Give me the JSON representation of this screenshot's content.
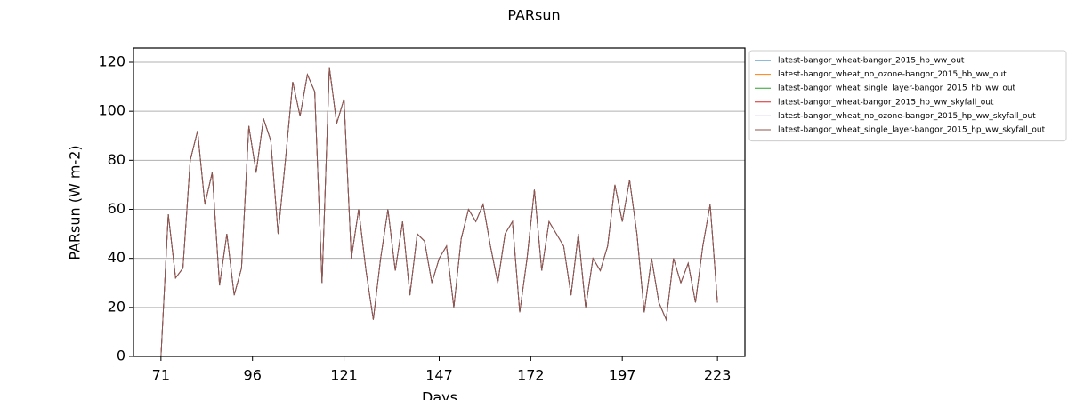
{
  "chart_data": {
    "type": "line",
    "title": "PARsun",
    "xlabel": "Days",
    "ylabel": "PARsun (W m-2)",
    "xlim": [
      63.5,
      230.5
    ],
    "xticks": [
      71,
      96,
      121,
      147,
      172,
      197,
      223
    ],
    "ylim": [
      0,
      125.8
    ],
    "yticks": [
      0,
      20,
      40,
      60,
      80,
      100,
      120
    ],
    "grid": "y",
    "legend": "outside-right",
    "x": [
      71,
      73,
      75,
      77,
      79,
      81,
      83,
      85,
      87,
      89,
      91,
      93,
      95,
      97,
      99,
      101,
      103,
      105,
      107,
      109,
      111,
      113,
      115,
      117,
      119,
      121,
      123,
      125,
      127,
      129,
      131,
      133,
      135,
      137,
      139,
      141,
      143,
      145,
      147,
      149,
      151,
      153,
      155,
      157,
      159,
      161,
      163,
      165,
      167,
      169,
      171,
      173,
      175,
      177,
      179,
      181,
      183,
      185,
      187,
      189,
      191,
      193,
      195,
      197,
      199,
      201,
      203,
      205,
      207,
      209,
      211,
      213,
      215,
      217,
      219,
      221,
      223
    ],
    "series": [
      {
        "name": "latest-bangor_wheat-bangor_2015_hb_ww_out",
        "color": "#1f77b4",
        "values": [
          0,
          58,
          32,
          36,
          80,
          92,
          62,
          75,
          29,
          50,
          25,
          36,
          94,
          75,
          97,
          88,
          50,
          80,
          112,
          98,
          115,
          108,
          30,
          118,
          95,
          105,
          40,
          60,
          35,
          15,
          40,
          60,
          35,
          55,
          25,
          50,
          47,
          30,
          40,
          45,
          20,
          48,
          60,
          55,
          62,
          45,
          30,
          50,
          55,
          18,
          40,
          68,
          35,
          55,
          50,
          45,
          25,
          50,
          20,
          40,
          35,
          45,
          70,
          55,
          72,
          50,
          18,
          40,
          22,
          15,
          40,
          30,
          38,
          22,
          45,
          62,
          22
        ]
      },
      {
        "name": "latest-bangor_wheat_no_ozone-bangor_2015_hb_ww_out",
        "color": "#ff7f0e",
        "values": [
          0,
          58,
          32,
          36,
          80,
          92,
          62,
          75,
          29,
          50,
          25,
          36,
          94,
          75,
          97,
          88,
          50,
          80,
          112,
          98,
          115,
          108,
          30,
          118,
          95,
          105,
          40,
          60,
          35,
          15,
          40,
          60,
          35,
          55,
          25,
          50,
          47,
          30,
          40,
          45,
          20,
          48,
          60,
          55,
          62,
          45,
          30,
          50,
          55,
          18,
          40,
          68,
          35,
          55,
          50,
          45,
          25,
          50,
          20,
          40,
          35,
          45,
          70,
          55,
          72,
          50,
          18,
          40,
          22,
          15,
          40,
          30,
          38,
          22,
          45,
          62,
          22
        ]
      },
      {
        "name": "latest-bangor_wheat_single_layer-bangor_2015_hb_ww_out",
        "color": "#2ca02c",
        "values": [
          0,
          58,
          32,
          36,
          80,
          92,
          62,
          75,
          29,
          50,
          25,
          36,
          94,
          75,
          97,
          88,
          50,
          80,
          112,
          98,
          115,
          108,
          30,
          118,
          95,
          105,
          40,
          60,
          35,
          15,
          40,
          60,
          35,
          55,
          25,
          50,
          47,
          30,
          40,
          45,
          20,
          48,
          60,
          55,
          62,
          45,
          30,
          50,
          55,
          18,
          40,
          68,
          35,
          55,
          50,
          45,
          25,
          50,
          20,
          40,
          35,
          45,
          70,
          55,
          72,
          50,
          18,
          40,
          22,
          15,
          40,
          30,
          38,
          22,
          45,
          62,
          22
        ]
      },
      {
        "name": "latest-bangor_wheat-bangor_2015_hp_ww_skyfall_out",
        "color": "#d62728",
        "values": [
          0,
          58,
          32,
          36,
          80,
          92,
          62,
          75,
          29,
          50,
          25,
          36,
          94,
          75,
          97,
          88,
          50,
          80,
          112,
          98,
          115,
          108,
          30,
          118,
          95,
          105,
          40,
          60,
          35,
          15,
          40,
          60,
          35,
          55,
          25,
          50,
          47,
          30,
          40,
          45,
          20,
          48,
          60,
          55,
          62,
          45,
          30,
          50,
          55,
          18,
          40,
          68,
          35,
          55,
          50,
          45,
          25,
          50,
          20,
          40,
          35,
          45,
          70,
          55,
          72,
          50,
          18,
          40,
          22,
          15,
          40,
          30,
          38,
          22,
          45,
          62,
          22
        ]
      },
      {
        "name": "latest-bangor_wheat_no_ozone-bangor_2015_hp_ww_skyfall_out",
        "color": "#9467bd",
        "values": [
          0,
          58,
          32,
          36,
          80,
          92,
          62,
          75,
          29,
          50,
          25,
          36,
          94,
          75,
          97,
          88,
          50,
          80,
          112,
          98,
          115,
          108,
          30,
          118,
          95,
          105,
          40,
          60,
          35,
          15,
          40,
          60,
          35,
          55,
          25,
          50,
          47,
          30,
          40,
          45,
          20,
          48,
          60,
          55,
          62,
          45,
          30,
          50,
          55,
          18,
          40,
          68,
          35,
          55,
          50,
          45,
          25,
          50,
          20,
          40,
          35,
          45,
          70,
          55,
          72,
          50,
          18,
          40,
          22,
          15,
          40,
          30,
          38,
          22,
          45,
          62,
          22
        ]
      },
      {
        "name": "latest-bangor_wheat_single_layer-bangor_2015_hp_ww_skyfall_out",
        "color": "#8c564b",
        "values": [
          0,
          58,
          32,
          36,
          80,
          92,
          62,
          75,
          29,
          50,
          25,
          36,
          94,
          75,
          97,
          88,
          50,
          80,
          112,
          98,
          115,
          108,
          30,
          118,
          95,
          105,
          40,
          60,
          35,
          15,
          40,
          60,
          35,
          55,
          25,
          50,
          47,
          30,
          40,
          45,
          20,
          48,
          60,
          55,
          62,
          45,
          30,
          50,
          55,
          18,
          40,
          68,
          35,
          55,
          50,
          45,
          25,
          50,
          20,
          40,
          35,
          45,
          70,
          55,
          72,
          50,
          18,
          40,
          22,
          15,
          40,
          30,
          38,
          22,
          45,
          62,
          22
        ]
      }
    ]
  }
}
